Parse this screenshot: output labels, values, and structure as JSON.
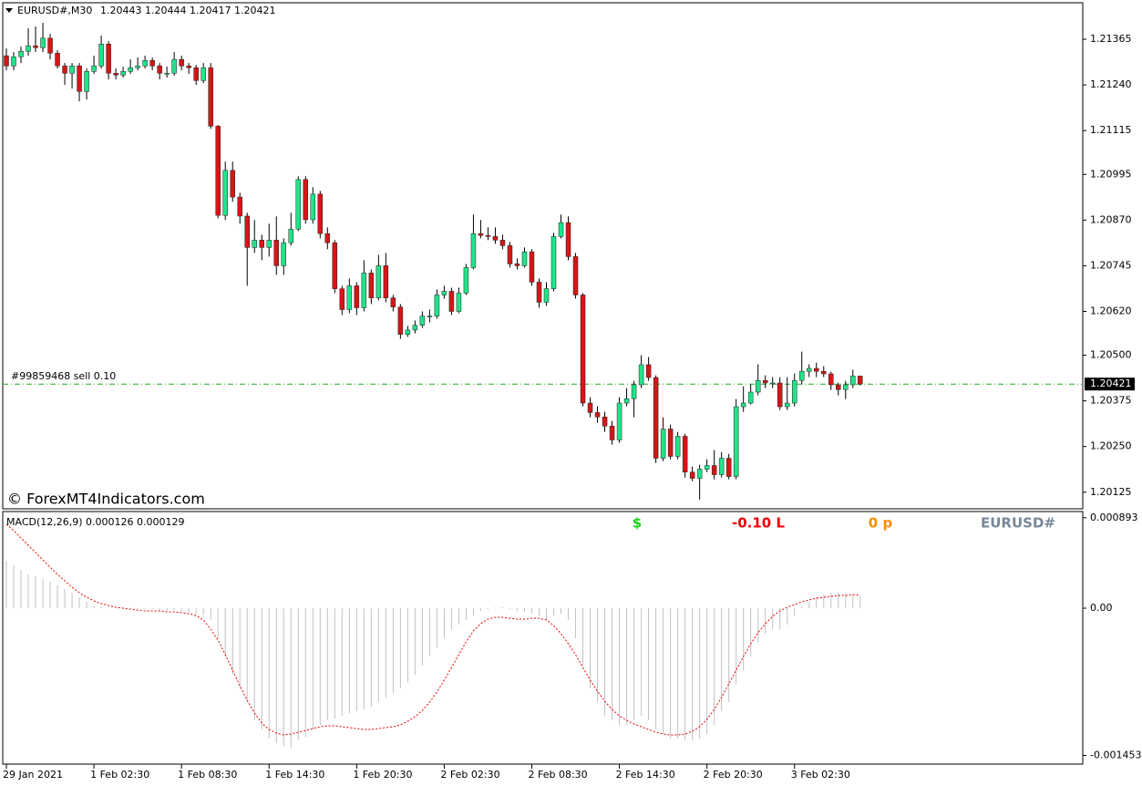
{
  "watermark": "© ForexMT4Indicators.com",
  "chart_data": [
    {
      "type": "candlestick",
      "title": "EURUSD#,M30",
      "quote": "1.20443 1.20444 1.20417 1.20421",
      "bull_color": "#21e38a",
      "bear_color": "#d41616",
      "wick_color": "#000000",
      "xlim": [
        -0.5,
        147.5
      ],
      "xticks": [
        {
          "value": 0,
          "label": "29 Jan 2021"
        },
        {
          "value": 12,
          "label": "1 Feb 02:30"
        },
        {
          "value": 24,
          "label": "1 Feb 08:30"
        },
        {
          "value": 36,
          "label": "1 Feb 14:30"
        },
        {
          "value": 48,
          "label": "1 Feb 20:30"
        },
        {
          "value": 60,
          "label": "2 Feb 02:30"
        },
        {
          "value": 72,
          "label": "2 Feb 08:30"
        },
        {
          "value": 84,
          "label": "2 Feb 14:30"
        },
        {
          "value": 96,
          "label": "2 Feb 20:30"
        },
        {
          "value": 108,
          "label": "3 Feb 02:30"
        }
      ],
      "ylim": [
        1.20082,
        1.21465
      ],
      "yticks": [
        1.21365,
        {
          "value": 1.2124,
          "label": "1.21240"
        },
        1.21115,
        1.20995,
        {
          "value": 1.2087,
          "label": "1.20870"
        },
        1.20745,
        {
          "value": 1.2062,
          "label": "1.20620"
        },
        {
          "value": 1.205,
          "label": "1.20500"
        },
        1.20375,
        {
          "value": 1.2025,
          "label": "1.20250"
        },
        1.20125
      ],
      "current_price": 1.20421,
      "order_line": {
        "label": "#99859468 sell 0.10",
        "price": 1.20421,
        "color": "#22aa22"
      },
      "open": [
        1.2132,
        1.21292,
        1.21317,
        1.21332,
        1.21347,
        1.21342,
        1.21368,
        1.21327,
        1.21292,
        1.21272,
        1.21292,
        1.21222,
        1.21277,
        1.21292,
        1.21352,
        1.21272,
        1.21267,
        1.21277,
        1.21287,
        1.21292,
        1.21307,
        1.21292,
        1.21272,
        1.21272,
        1.2131,
        1.21292,
        1.21287,
        1.21252,
        1.21287,
        1.21127,
        1.20883,
        1.21006,
        1.20933,
        1.20881,
        1.20795,
        1.20815,
        1.20795,
        1.20815,
        1.20745,
        1.20808,
        1.20845,
        1.20981,
        1.20871,
        1.20941,
        1.20833,
        1.20808,
        1.20682,
        1.20625,
        1.2069,
        1.2063,
        1.20725,
        1.20657,
        1.20745,
        1.20657,
        1.20632,
        1.20557,
        1.20569,
        1.20582,
        1.20607,
        1.20607,
        1.20665,
        1.20675,
        1.2062,
        1.2067,
        1.2074,
        1.20833,
        1.20828,
        1.20825,
        1.20815,
        1.208,
        1.2075,
        1.20745,
        1.20783,
        1.207,
        1.20645,
        1.20682,
        1.20825,
        1.20863,
        1.2077,
        1.20665,
        1.20369,
        1.20343,
        1.20331,
        1.20306,
        1.20268,
        1.20369,
        1.20381,
        1.20419,
        1.20474,
        1.20439,
        1.20218,
        1.20298,
        1.20223,
        1.20278,
        1.2018,
        1.20163,
        1.20188,
        1.20198,
        1.20173,
        1.20218,
        1.20168,
        1.20359,
        1.20369,
        1.20399,
        1.20431,
        1.20424,
        1.20424,
        1.20359,
        1.20369,
        1.20431,
        1.20456,
        1.20464,
        1.20456,
        1.20449,
        1.20419,
        1.20406,
        1.20419,
        1.20443
      ],
      "high": [
        1.2134,
        1.2133,
        1.21345,
        1.21395,
        1.214,
        1.2141,
        1.2138,
        1.21335,
        1.213,
        1.213,
        1.213,
        1.21285,
        1.2132,
        1.21375,
        1.2136,
        1.21285,
        1.2129,
        1.2131,
        1.21315,
        1.2132,
        1.21315,
        1.213,
        1.2129,
        1.2133,
        1.2132,
        1.213,
        1.21295,
        1.213,
        1.213,
        1.2113,
        1.2103,
        1.2103,
        1.20945,
        1.2089,
        1.2087,
        1.2083,
        1.2086,
        1.2088,
        1.2082,
        1.2089,
        1.2099,
        1.2099,
        1.2096,
        1.2095,
        1.2085,
        1.20815,
        1.2069,
        1.2071,
        1.207,
        1.2076,
        1.20735,
        1.20775,
        1.2078,
        1.20665,
        1.2064,
        1.2058,
        1.20595,
        1.2062,
        1.20625,
        1.2068,
        1.2069,
        1.20685,
        1.20685,
        1.2075,
        1.20885,
        1.2087,
        1.2085,
        1.2085,
        1.2083,
        1.2081,
        1.20765,
        1.20795,
        1.2079,
        1.2071,
        1.207,
        1.20835,
        1.20885,
        1.2088,
        1.2078,
        1.2067,
        1.20385,
        1.2036,
        1.20345,
        1.2032,
        1.20385,
        1.2041,
        1.2043,
        1.205,
        1.20495,
        1.20445,
        1.2033,
        1.2031,
        1.2029,
        1.20285,
        1.20195,
        1.202,
        1.20215,
        1.2024,
        1.20235,
        1.2023,
        1.2038,
        1.20415,
        1.2042,
        1.20475,
        1.20445,
        1.2044,
        1.2044,
        1.2044,
        1.2045,
        1.2051,
        1.20475,
        1.2048,
        1.2047,
        1.20455,
        1.20425,
        1.2043,
        1.2046,
        1.20444
      ],
      "low": [
        1.2128,
        1.2128,
        1.213,
        1.2132,
        1.2133,
        1.2133,
        1.2131,
        1.21285,
        1.2124,
        1.2123,
        1.21195,
        1.212,
        1.2127,
        1.21285,
        1.21255,
        1.21255,
        1.2126,
        1.2127,
        1.2128,
        1.21285,
        1.2128,
        1.21255,
        1.2126,
        1.21265,
        1.2128,
        1.2127,
        1.2124,
        1.21245,
        1.2112,
        1.20875,
        1.2087,
        1.2092,
        1.2086,
        1.2069,
        1.2078,
        1.2076,
        1.2077,
        1.2072,
        1.2072,
        1.208,
        1.2084,
        1.2086,
        1.2086,
        1.2082,
        1.2079,
        1.2067,
        1.2061,
        1.20615,
        1.2061,
        1.2062,
        1.2064,
        1.2065,
        1.20645,
        1.2062,
        1.20545,
        1.2055,
        1.2056,
        1.20575,
        1.2059,
        1.206,
        1.20655,
        1.2061,
        1.20615,
        1.20665,
        1.20735,
        1.2082,
        1.20815,
        1.20805,
        1.2079,
        1.2074,
        1.20735,
        1.2074,
        1.2069,
        1.2063,
        1.20635,
        1.20675,
        1.2082,
        1.2076,
        1.20655,
        1.2036,
        1.2033,
        1.20315,
        1.2029,
        1.20255,
        1.2026,
        1.2036,
        1.2033,
        1.2041,
        1.2043,
        1.20205,
        1.2021,
        1.20215,
        1.20215,
        1.20165,
        1.20155,
        1.20105,
        1.2018,
        1.2016,
        1.20165,
        1.2016,
        1.2016,
        1.20345,
        1.20365,
        1.2039,
        1.2041,
        1.2041,
        1.2035,
        1.2035,
        1.2036,
        1.2042,
        1.2044,
        1.2044,
        1.2044,
        1.20405,
        1.2039,
        1.2038,
        1.2041,
        1.20417
      ],
      "close": [
        1.21292,
        1.21317,
        1.21332,
        1.21347,
        1.21342,
        1.21368,
        1.21327,
        1.21292,
        1.21272,
        1.21292,
        1.21222,
        1.21277,
        1.21292,
        1.21352,
        1.21272,
        1.21267,
        1.21277,
        1.21287,
        1.21292,
        1.21307,
        1.21292,
        1.21272,
        1.21272,
        1.2131,
        1.21292,
        1.21287,
        1.21252,
        1.21287,
        1.21127,
        1.20883,
        1.21006,
        1.20933,
        1.20881,
        1.20795,
        1.20815,
        1.20795,
        1.20815,
        1.20745,
        1.20808,
        1.20845,
        1.20981,
        1.20871,
        1.20941,
        1.20833,
        1.20808,
        1.20682,
        1.20625,
        1.2069,
        1.2063,
        1.20725,
        1.20657,
        1.20745,
        1.20657,
        1.20632,
        1.20557,
        1.20569,
        1.20582,
        1.20607,
        1.20607,
        1.20665,
        1.20675,
        1.2062,
        1.2067,
        1.2074,
        1.20833,
        1.20828,
        1.20825,
        1.20815,
        1.208,
        1.2075,
        1.20745,
        1.20783,
        1.207,
        1.20645,
        1.20682,
        1.20825,
        1.20863,
        1.2077,
        1.20665,
        1.20369,
        1.20343,
        1.20331,
        1.20306,
        1.20268,
        1.20369,
        1.20381,
        1.20419,
        1.20474,
        1.20439,
        1.20218,
        1.20298,
        1.20223,
        1.20278,
        1.2018,
        1.20163,
        1.20188,
        1.20198,
        1.20173,
        1.20218,
        1.20168,
        1.20359,
        1.20369,
        1.20399,
        1.20431,
        1.20424,
        1.20424,
        1.20359,
        1.20369,
        1.20431,
        1.20456,
        1.20464,
        1.20456,
        1.20449,
        1.20419,
        1.20406,
        1.20419,
        1.20443,
        1.20421
      ]
    },
    {
      "type": "macd",
      "title": "MACD(12,26,9) 0.000126 0.000129",
      "ylim": [
        -0.001539,
        0.000954
      ],
      "yticks": [
        0.000893,
        {
          "value": 0,
          "label": "0.00"
        },
        -0.001453
      ],
      "labels": [
        {
          "text": "$",
          "color": "#19d419"
        },
        {
          "text": "-0.10 L",
          "color": "#ee0000"
        },
        {
          "text": "0 p",
          "color": "#ff8c00"
        },
        {
          "text": "EURUSD#",
          "color": "#778899"
        }
      ],
      "histogram_color": "#c0c0c0",
      "signal_color": "#ee0000",
      "histogram": [
        0.000468,
        0.000423,
        0.000378,
        0.000333,
        0.000315,
        0.000288,
        0.000261,
        0.000225,
        0.000189,
        0.000153,
        0.000108,
        6.3e-05,
        2.7e-05,
        1.8e-05,
        9e-06,
        9e-06,
        5e-06,
        3e-06,
        -5e-06,
        -9e-06,
        -9e-06,
        -1.8e-05,
        -2.7e-05,
        -1.8e-05,
        -2.7e-05,
        -3.6e-05,
        -5.4e-05,
        -6.3e-05,
        -0.000117,
        -0.000297,
        -0.000477,
        -0.000657,
        -0.000792,
        -0.000927,
        -0.001107,
        -0.001197,
        -0.001287,
        -0.001332,
        -0.001359,
        -0.001377,
        -0.001305,
        -0.001269,
        -0.001197,
        -0.001152,
        -0.001107,
        -0.001089,
        -0.001062,
        -0.001035,
        -0.001017,
        -0.000999,
        -0.000972,
        -0.000927,
        -0.000882,
        -0.000837,
        -0.000792,
        -0.000729,
        -0.000657,
        -0.000567,
        -0.000477,
        -0.000387,
        -0.000297,
        -0.000207,
        -0.000162,
        -0.000117,
        -7.2e-05,
        -2.7e-05,
        -9e-06,
        5e-06,
        9e-06,
        -9e-06,
        -2.7e-05,
        -3.6e-05,
        -4.5e-05,
        -8.1e-05,
        -0.000117,
        -7.2e-05,
        -5.4e-05,
        -0.000117,
        -0.000297,
        -0.000567,
        -0.000792,
        -0.000927,
        -0.001062,
        -0.001107,
        -0.001152,
        -0.001152,
        -0.001107,
        -0.001062,
        -0.001107,
        -0.001197,
        -0.001242,
        -0.001287,
        -0.001287,
        -0.001305,
        -0.001305,
        -0.001287,
        -0.001242,
        -0.001152,
        -0.001017,
        -0.000927,
        -0.000747,
        -0.000612,
        -0.000477,
        -0.000342,
        -0.000252,
        -0.000207,
        -0.000207,
        -0.000162,
        -7.2e-05,
        1.8e-05,
        6.3e-05,
        0.000108,
        0.000135,
        0.000153,
        0.000153,
        0.000153,
        0.000135,
        0.000126
      ],
      "signal": [
        0.000828,
        0.000765,
        0.000693,
        0.000621,
        0.000549,
        0.000477,
        0.000405,
        0.000333,
        0.00027,
        0.000207,
        0.000153,
        0.000108,
        7.2e-05,
        4.5e-05,
        2.7e-05,
        9e-06,
        0,
        -9e-06,
        -1.8e-05,
        -2.7e-05,
        -2.7e-05,
        -2.7e-05,
        -3.6e-05,
        -3.6e-05,
        -4.5e-05,
        -5.4e-05,
        -7.2e-05,
        -0.000117,
        -0.000207,
        -0.000315,
        -0.000459,
        -0.000612,
        -0.000765,
        -0.000909,
        -0.001035,
        -0.001134,
        -0.001197,
        -0.001233,
        -0.001251,
        -0.001242,
        -0.001224,
        -0.001206,
        -0.001188,
        -0.00117,
        -0.001161,
        -0.001161,
        -0.00117,
        -0.001179,
        -0.001188,
        -0.001197,
        -0.001197,
        -0.001188,
        -0.001179,
        -0.00117,
        -0.001152,
        -0.001116,
        -0.001071,
        -0.001008,
        -0.000927,
        -0.000828,
        -0.000711,
        -0.000585,
        -0.000459,
        -0.000333,
        -0.000225,
        -0.000153,
        -0.000108,
        -9e-05,
        -9e-05,
        -9.9e-05,
        -0.000108,
        -0.000108,
        -9.9e-05,
        -9.9e-05,
        -0.000117,
        -0.000171,
        -0.000252,
        -0.000351,
        -0.000459,
        -0.000585,
        -0.000711,
        -0.000819,
        -0.000918,
        -0.000999,
        -0.001062,
        -0.001107,
        -0.001143,
        -0.00117,
        -0.001197,
        -0.001224,
        -0.001242,
        -0.001251,
        -0.001251,
        -0.001242,
        -0.001215,
        -0.00117,
        -0.001098,
        -0.000999,
        -0.000882,
        -0.000747,
        -0.000612,
        -0.000477,
        -0.000351,
        -0.000243,
        -0.000153,
        -8.1e-05,
        -2.7e-05,
        9e-06,
        3.6e-05,
        6.3e-05,
        8.1e-05,
        9.9e-05,
        0.000108,
        0.000117,
        0.000126,
        0.000126,
        0.000135,
        0.000129
      ]
    }
  ]
}
